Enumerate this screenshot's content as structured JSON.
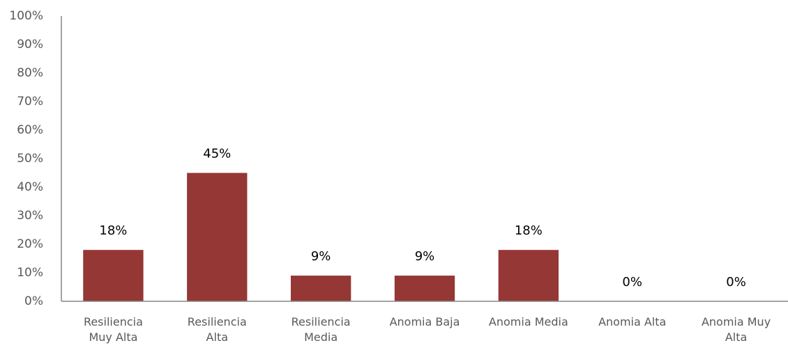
{
  "chart_data": {
    "type": "bar",
    "categories": [
      "Resiliencia Muy Alta",
      "Resiliencia Alta",
      "Resiliencia Media",
      "Anomia Baja",
      "Anomia Media",
      "Anomia Alta",
      "Anomia Muy Alta"
    ],
    "values": [
      18,
      45,
      9,
      9,
      18,
      0,
      0
    ],
    "value_labels": [
      "18%",
      "45%",
      "9%",
      "9%",
      "18%",
      "0%",
      "0%"
    ],
    "color": "#953735",
    "ylim": [
      0,
      100
    ],
    "yticks": [
      {
        "value": 0,
        "label": "0%"
      },
      {
        "value": 10,
        "label": "10%"
      },
      {
        "value": 20,
        "label": "20%"
      },
      {
        "value": 30,
        "label": "30%"
      },
      {
        "value": 40,
        "label": "40%"
      },
      {
        "value": 50,
        "label": "50%"
      },
      {
        "value": 60,
        "label": "60%"
      },
      {
        "value": 70,
        "label": "70%"
      },
      {
        "value": 80,
        "label": "80%"
      },
      {
        "value": 90,
        "label": "90%"
      },
      {
        "value": 100,
        "label": "100%"
      }
    ],
    "grid": false
  }
}
